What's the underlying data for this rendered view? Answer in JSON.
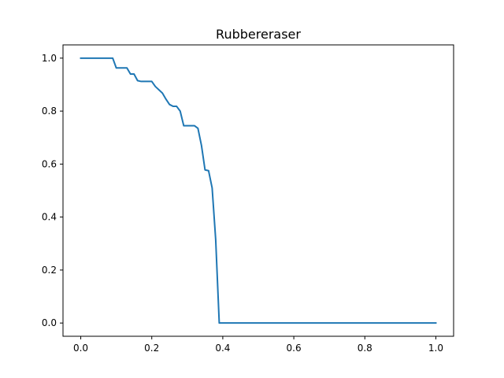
{
  "chart_data": {
    "type": "line",
    "title": "Rubbereraser",
    "xlabel": "",
    "ylabel": "",
    "xlim": [
      -0.05,
      1.05
    ],
    "ylim": [
      -0.05,
      1.05
    ],
    "x_ticks": [
      0.0,
      0.2,
      0.4,
      0.6,
      0.8,
      1.0
    ],
    "x_tick_labels": [
      "0.0",
      "0.2",
      "0.4",
      "0.6",
      "0.8",
      "1.0"
    ],
    "y_ticks": [
      0.0,
      0.2,
      0.4,
      0.6,
      0.8,
      1.0
    ],
    "y_tick_labels": [
      "0.0",
      "0.2",
      "0.4",
      "0.6",
      "0.8",
      "1.0"
    ],
    "grid": false,
    "legend": "none",
    "series": [
      {
        "color": "#1f77b4",
        "x": [
          0.0,
          0.09,
          0.1,
          0.13,
          0.14,
          0.15,
          0.16,
          0.17,
          0.2,
          0.21,
          0.23,
          0.24,
          0.25,
          0.26,
          0.27,
          0.28,
          0.29,
          0.31,
          0.32,
          0.33,
          0.34,
          0.35,
          0.36,
          0.37,
          0.38,
          0.39,
          0.4,
          1.0
        ],
        "y": [
          1.0,
          1.0,
          0.963,
          0.963,
          0.94,
          0.94,
          0.915,
          0.912,
          0.912,
          0.893,
          0.868,
          0.845,
          0.825,
          0.818,
          0.818,
          0.8,
          0.745,
          0.745,
          0.745,
          0.735,
          0.67,
          0.578,
          0.575,
          0.51,
          0.315,
          0.0,
          0.0,
          0.0
        ]
      }
    ]
  }
}
